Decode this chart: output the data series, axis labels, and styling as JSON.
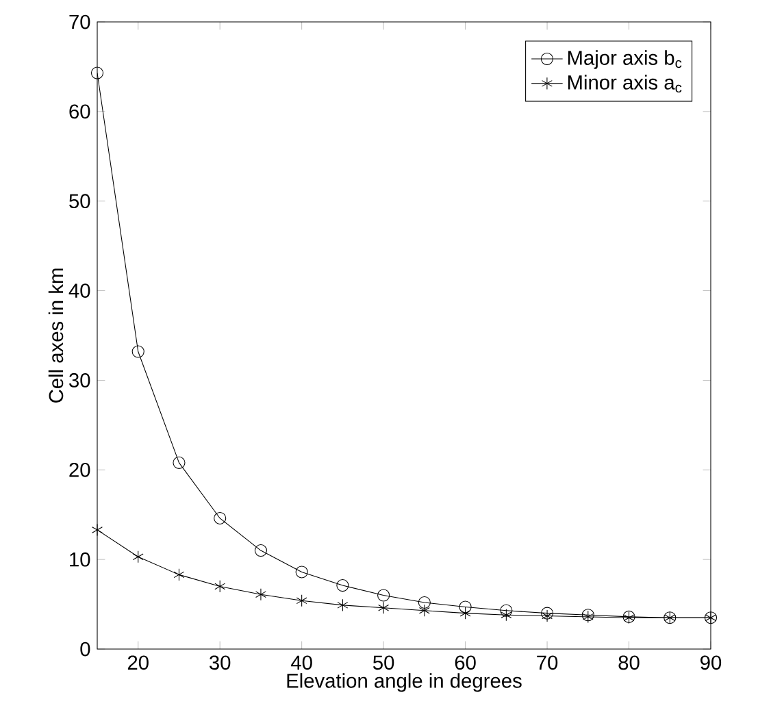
{
  "chart_data": {
    "type": "line",
    "xlabel": "Elevation angle in degrees",
    "ylabel": "Cell axes in km",
    "x": [
      15,
      20,
      25,
      30,
      35,
      40,
      45,
      50,
      55,
      60,
      65,
      70,
      75,
      80,
      85,
      90
    ],
    "series": [
      {
        "name": "Major axis b$_{c}$",
        "color": "#000000",
        "marker": "circle",
        "values": [
          64.3,
          33.2,
          20.8,
          14.6,
          11.0,
          8.6,
          7.1,
          6.0,
          5.2,
          4.7,
          4.3,
          4.0,
          3.8,
          3.6,
          3.5,
          3.5
        ]
      },
      {
        "name": "Minor axis a$_{c}$",
        "color": "#000000",
        "marker": "cross",
        "values": [
          13.3,
          10.3,
          8.3,
          7.0,
          6.1,
          5.4,
          4.9,
          4.6,
          4.3,
          4.0,
          3.8,
          3.7,
          3.6,
          3.5,
          3.5,
          3.5
        ]
      }
    ],
    "xlim": [
      15,
      90
    ],
    "xticks": [
      20,
      30,
      40,
      50,
      60,
      70,
      80,
      90
    ],
    "ylim": [
      0,
      70
    ],
    "yticks": [
      0,
      10,
      20,
      30,
      40,
      50,
      60,
      70
    ],
    "grid": false,
    "legend": "top right",
    "line_style": "solid"
  }
}
